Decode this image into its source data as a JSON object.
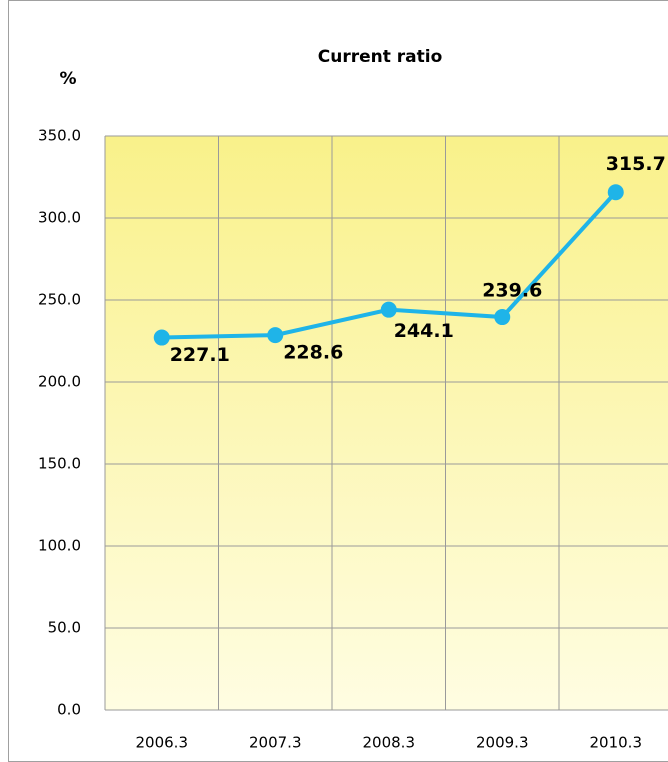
{
  "chart_data": {
    "type": "line",
    "title": "Current ratio",
    "y_label": "%",
    "categories": [
      "2006.3",
      "2007.3",
      "2008.3",
      "2009.3",
      "2010.3"
    ],
    "series": [
      {
        "name": "Current ratio",
        "color": "#1fb4e8",
        "values": [
          227.1,
          228.6,
          244.1,
          239.6,
          315.7
        ]
      }
    ],
    "ylim": [
      0,
      350
    ],
    "yticks": [
      {
        "value": 0,
        "label": "0.0"
      },
      {
        "value": 50,
        "label": "50.0"
      },
      {
        "value": 100,
        "label": "100.0"
      },
      {
        "value": 150,
        "label": "150.0"
      },
      {
        "value": 200,
        "label": "200.0"
      },
      {
        "value": 250,
        "label": "250.0"
      },
      {
        "value": 300,
        "label": "300.0"
      },
      {
        "value": 350,
        "label": "350.0"
      }
    ],
    "grid": true
  }
}
